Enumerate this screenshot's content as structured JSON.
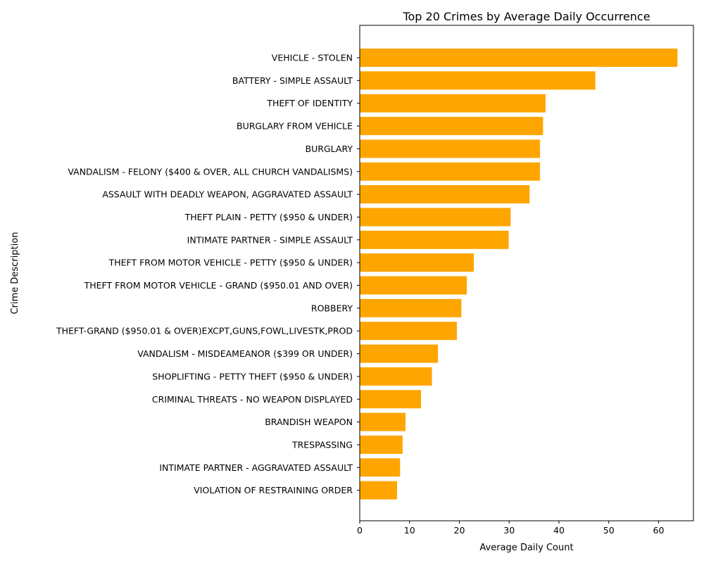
{
  "chart_data": {
    "type": "bar",
    "orientation": "horizontal",
    "title": "Top 20 Crimes by Average Daily Occurrence",
    "xlabel": "Average Daily Count",
    "ylabel": "Crime Description",
    "bar_color": "#FFA500",
    "xlim": [
      0,
      67
    ],
    "xticks": [
      0,
      10,
      20,
      30,
      40,
      50,
      60
    ],
    "grid": false,
    "categories": [
      "VEHICLE - STOLEN",
      "BATTERY - SIMPLE ASSAULT",
      "THEFT OF IDENTITY",
      "BURGLARY FROM VEHICLE",
      "BURGLARY",
      "VANDALISM - FELONY ($400 & OVER, ALL CHURCH VANDALISMS)",
      "ASSAULT WITH DEADLY WEAPON, AGGRAVATED ASSAULT",
      "THEFT PLAIN - PETTY ($950 & UNDER)",
      "INTIMATE PARTNER - SIMPLE ASSAULT",
      "THEFT FROM MOTOR VEHICLE - PETTY ($950 & UNDER)",
      "THEFT FROM MOTOR VEHICLE - GRAND ($950.01 AND OVER)",
      "ROBBERY",
      "THEFT-GRAND ($950.01 & OVER)EXCPT,GUNS,FOWL,LIVESTK,PROD",
      "VANDALISM - MISDEAMEANOR ($399 OR UNDER)",
      "SHOPLIFTING - PETTY THEFT ($950 & UNDER)",
      "CRIMINAL THREATS - NO WEAPON DISPLAYED",
      "BRANDISH WEAPON",
      "TRESPASSING",
      "INTIMATE PARTNER - AGGRAVATED ASSAULT",
      "VIOLATION OF RESTRAINING ORDER"
    ],
    "values": [
      63.8,
      47.3,
      37.3,
      36.8,
      36.2,
      36.2,
      34.1,
      30.3,
      29.9,
      22.9,
      21.5,
      20.4,
      19.5,
      15.7,
      14.5,
      12.3,
      9.2,
      8.6,
      8.1,
      7.5
    ]
  }
}
